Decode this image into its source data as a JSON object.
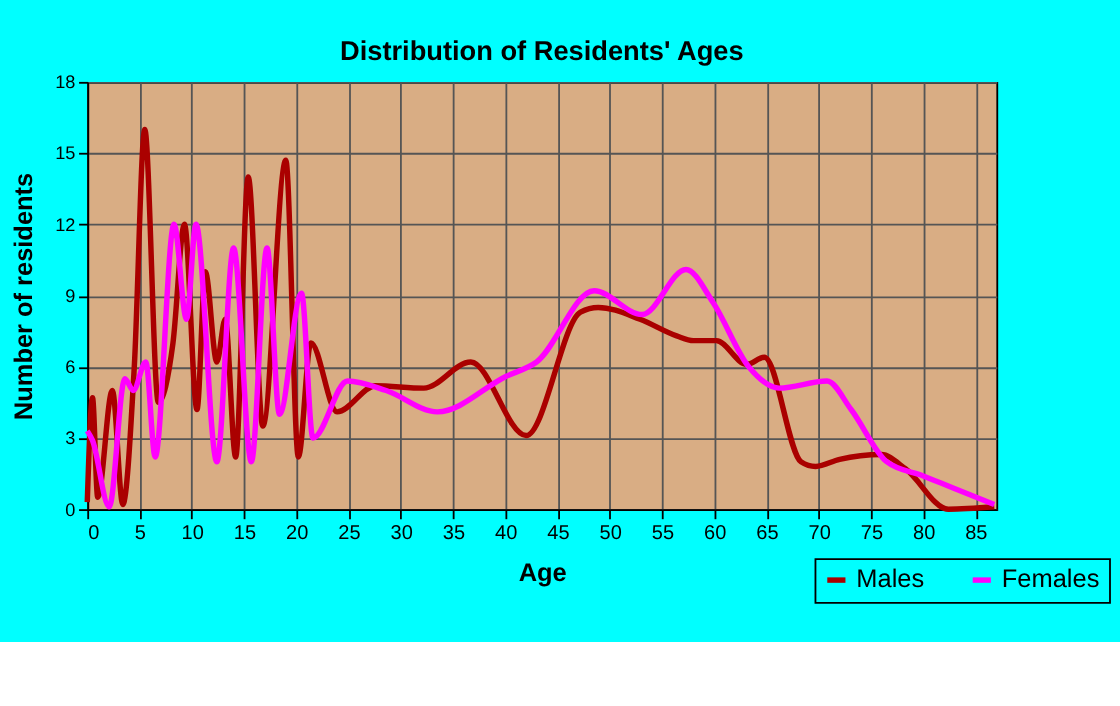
{
  "chart_data": {
    "type": "line",
    "title": "Distribution of Residents' Ages",
    "xlabel": "Age",
    "ylabel": "Number of residents",
    "xlim": [
      0,
      87
    ],
    "xticks": [
      0,
      5,
      10,
      15,
      20,
      25,
      30,
      35,
      40,
      45,
      50,
      55,
      60,
      65,
      70,
      75,
      80,
      85
    ],
    "ylim": [
      0,
      18
    ],
    "yticks": [
      0,
      3,
      6,
      9,
      12,
      15,
      18
    ],
    "grid": true,
    "legend": "bottom right",
    "line_style": "solid",
    "series": [
      {
        "name": "Males",
        "color": "#aa0000",
        "x": [
          0,
          0.5,
          1,
          2.4,
          3.4,
          4.5,
          5.5,
          6.8,
          8.2,
          9.3,
          10.5,
          11.3,
          12.4,
          13.2,
          14.2,
          15.4,
          16.8,
          19,
          20.2,
          21.4,
          23.9,
          27.6,
          32.2,
          36.7,
          42,
          47.2,
          48.9,
          52.9,
          56.4,
          58,
          60.2,
          63.1,
          64.8,
          68.3,
          69.7,
          72,
          76,
          78.3,
          82.4,
          86.8
        ],
        "values": [
          0.3,
          4.7,
          0.5,
          5,
          0.2,
          6,
          16,
          4.5,
          7,
          12,
          4.2,
          10,
          6.2,
          8,
          2.2,
          14,
          3.5,
          14.7,
          2.2,
          7,
          4.1,
          5.2,
          5.1,
          6.2,
          3.1,
          8.3,
          8.5,
          8,
          7.3,
          7.1,
          7.1,
          6.1,
          6.4,
          2,
          1.8,
          2.1,
          2.3,
          1.7,
          0,
          0.1
        ]
      },
      {
        "name": "Females",
        "color": "#ff00ff",
        "x": [
          0,
          0.5,
          2.1,
          3.6,
          4.4,
          5.6,
          6.5,
          8.3,
          9.5,
          10.4,
          12.4,
          14,
          15.7,
          17.2,
          18.4,
          20.5,
          21.6,
          24.9,
          28.6,
          33.5,
          40.1,
          43,
          48.5,
          53.1,
          57.3,
          59.9,
          63.3,
          66.2,
          70.8,
          73.1,
          76.5,
          80,
          81.7,
          86.8
        ],
        "values": [
          3.3,
          2.9,
          0.1,
          5.5,
          5,
          6.2,
          2.2,
          12,
          8,
          12,
          2,
          11,
          2,
          11,
          4,
          9.1,
          3,
          5.4,
          5,
          4.1,
          5.6,
          6.2,
          9.2,
          8.2,
          10.1,
          8.7,
          6,
          5.1,
          5.4,
          4.2,
          2,
          1.4,
          1.1,
          0.2
        ]
      }
    ]
  }
}
